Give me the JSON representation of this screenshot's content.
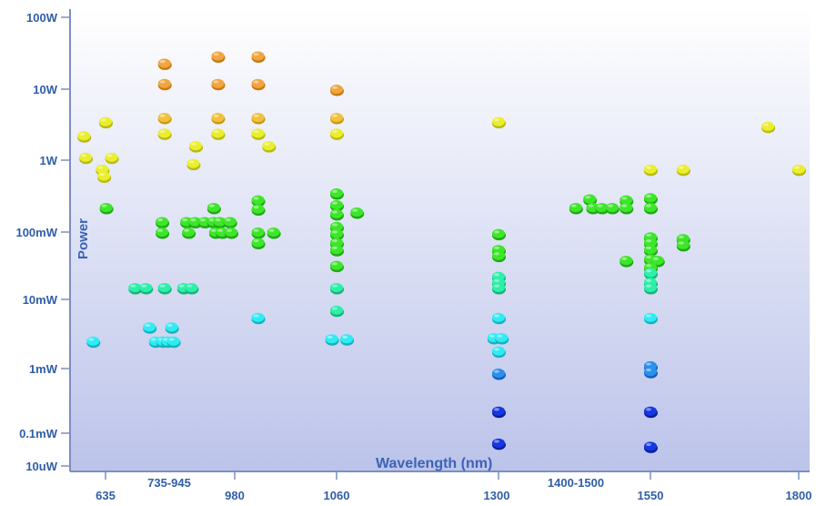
{
  "chart_data": {
    "type": "scatter",
    "xlabel": "Wavelength (nm)",
    "ylabel": "Power",
    "y_scale": "log",
    "y_ticks": [
      "100W",
      "10W",
      "1W",
      "100mW",
      "10mW",
      "1mW",
      "0.1mW",
      "10uW"
    ],
    "x_ticks": [
      "635",
      "735-945",
      "980",
      "1060",
      "1300",
      "1400-1500",
      "1550",
      "1800"
    ],
    "grid": false,
    "colors": {
      "axis": "#7d8fbf",
      "tick_text": "#2f5ea8",
      "background_top": "#ffffff",
      "background_bottom": "#bcc3ea"
    },
    "points": [
      {
        "x": 609,
        "y": "2.2W"
      },
      {
        "x": 635,
        "y": "3.5W"
      },
      {
        "x": 611,
        "y": "1.1W"
      },
      {
        "x": 631,
        "y": "0.75W"
      },
      {
        "x": 633,
        "y": "0.6W"
      },
      {
        "x": 645,
        "y": "1.1W"
      },
      {
        "x": 636,
        "y": "220mW"
      },
      {
        "x": 620,
        "y": "2.5mW"
      },
      {
        "x": 733,
        "y": "23W"
      },
      {
        "x": 733,
        "y": "12W"
      },
      {
        "x": 733,
        "y": "4W"
      },
      {
        "x": 733,
        "y": "2.4W"
      },
      {
        "x": 785,
        "y": "1.6W"
      },
      {
        "x": 781,
        "y": "0.9W"
      },
      {
        "x": 822,
        "y": "29W"
      },
      {
        "x": 822,
        "y": "12W"
      },
      {
        "x": 822,
        "y": "4W"
      },
      {
        "x": 822,
        "y": "2.4W"
      },
      {
        "x": 898,
        "y": "29W"
      },
      {
        "x": 898,
        "y": "12W"
      },
      {
        "x": 898,
        "y": "4W"
      },
      {
        "x": 898,
        "y": "2.4W"
      },
      {
        "x": 920,
        "y": "1.6W"
      },
      {
        "x": 1060,
        "y": "10W"
      },
      {
        "x": 1060,
        "y": "4W"
      },
      {
        "x": 1060,
        "y": "2.4W"
      },
      {
        "x": 1300,
        "y": "3.5W"
      },
      {
        "x": 1748,
        "y": "3W"
      },
      {
        "x": 1800,
        "y": "0.75W"
      },
      {
        "x": 1605,
        "y": "0.75W"
      },
      {
        "x": 1550,
        "y": "0.75W"
      },
      {
        "x": 729,
        "y": "140mW"
      },
      {
        "x": 729,
        "y": "100mW"
      },
      {
        "x": 770,
        "y": "140mW"
      },
      {
        "x": 773,
        "y": "100mW"
      },
      {
        "x": 784,
        "y": "140mW"
      },
      {
        "x": 800,
        "y": "140mW"
      },
      {
        "x": 815,
        "y": "220mW"
      },
      {
        "x": 815,
        "y": "140mW"
      },
      {
        "x": 818,
        "y": "100mW"
      },
      {
        "x": 825,
        "y": "140mW"
      },
      {
        "x": 829,
        "y": "100mW"
      },
      {
        "x": 842,
        "y": "140mW"
      },
      {
        "x": 844,
        "y": "100mW"
      },
      {
        "x": 898,
        "y": "280mW"
      },
      {
        "x": 898,
        "y": "210mW"
      },
      {
        "x": 898,
        "y": "100mW"
      },
      {
        "x": 898,
        "y": "70mW"
      },
      {
        "x": 930,
        "y": "100mW"
      },
      {
        "x": 1060,
        "y": "350mW"
      },
      {
        "x": 1060,
        "y": "240mW"
      },
      {
        "x": 1060,
        "y": "180mW"
      },
      {
        "x": 1060,
        "y": "120mW"
      },
      {
        "x": 1060,
        "y": "95mW"
      },
      {
        "x": 1060,
        "y": "70mW"
      },
      {
        "x": 1060,
        "y": "55mW"
      },
      {
        "x": 1060,
        "y": "32mW"
      },
      {
        "x": 1090,
        "y": "190mW"
      },
      {
        "x": 1300,
        "y": "95mW"
      },
      {
        "x": 1300,
        "y": "55mW"
      },
      {
        "x": 1300,
        "y": "45mW"
      },
      {
        "x": 1300,
        "y": "22mW"
      },
      {
        "x": 1300,
        "y": "18mW"
      },
      {
        "x": 1300,
        "y": "15mW"
      },
      {
        "x": 1427,
        "y": "220mW"
      },
      {
        "x": 1450,
        "y": "290mW"
      },
      {
        "x": 1455,
        "y": "220mW"
      },
      {
        "x": 1470,
        "y": "220mW"
      },
      {
        "x": 1487,
        "y": "220mW"
      },
      {
        "x": 1510,
        "y": "280mW"
      },
      {
        "x": 1510,
        "y": "220mW"
      },
      {
        "x": 1550,
        "y": "300mW"
      },
      {
        "x": 1550,
        "y": "220mW"
      },
      {
        "x": 1550,
        "y": "85mW"
      },
      {
        "x": 1550,
        "y": "70mW"
      },
      {
        "x": 1550,
        "y": "55mW"
      },
      {
        "x": 1550,
        "y": "40mW"
      },
      {
        "x": 1605,
        "y": "80mW"
      },
      {
        "x": 1605,
        "y": "65mW"
      },
      {
        "x": 1510,
        "y": "38mW"
      },
      {
        "x": 1562,
        "y": "38mW"
      },
      {
        "x": 684,
        "y": "15mW"
      },
      {
        "x": 702,
        "y": "15mW"
      },
      {
        "x": 733,
        "y": "15mW"
      },
      {
        "x": 765,
        "y": "15mW"
      },
      {
        "x": 778,
        "y": "15mW"
      },
      {
        "x": 708,
        "y": "4mW"
      },
      {
        "x": 745,
        "y": "4mW"
      },
      {
        "x": 718,
        "y": "2.5mW"
      },
      {
        "x": 730,
        "y": "2.5mW"
      },
      {
        "x": 738,
        "y": "2.5mW"
      },
      {
        "x": 748,
        "y": "2.5mW"
      },
      {
        "x": 898,
        "y": "5.5mW"
      },
      {
        "x": 1060,
        "y": "15mW"
      },
      {
        "x": 1060,
        "y": "7mW"
      },
      {
        "x": 1050,
        "y": "2.7mW"
      },
      {
        "x": 1075,
        "y": "2.7mW"
      },
      {
        "x": 1300,
        "y": "5.5mW"
      },
      {
        "x": 1293,
        "y": "2.8mW"
      },
      {
        "x": 1305,
        "y": "2.8mW"
      },
      {
        "x": 1300,
        "y": "1.8mW"
      },
      {
        "x": 1550,
        "y": "30mW"
      },
      {
        "x": 1550,
        "y": "25mW"
      },
      {
        "x": 1550,
        "y": "18mW"
      },
      {
        "x": 1550,
        "y": "15mW"
      },
      {
        "x": 1550,
        "y": "5.5mW"
      },
      {
        "x": 1300,
        "y": "0.85mW"
      },
      {
        "x": 1300,
        "y": "0.22mW"
      },
      {
        "x": 1300,
        "y": "0.05mW"
      },
      {
        "x": 1550,
        "y": "1.1mW"
      },
      {
        "x": 1550,
        "y": "0.9mW"
      },
      {
        "x": 1550,
        "y": "0.22mW"
      },
      {
        "x": 1550,
        "y": "0.04mW"
      }
    ]
  }
}
